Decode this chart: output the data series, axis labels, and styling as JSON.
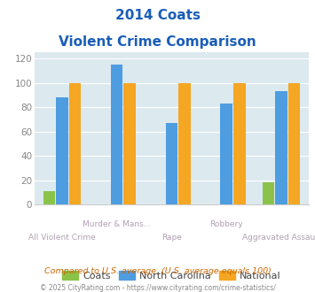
{
  "title_line1": "2014 Coats",
  "title_line2": "Violent Crime Comparison",
  "categories": [
    "All Violent Crime",
    "Murder & Mans...",
    "Rape",
    "Robbery",
    "Aggravated Assault"
  ],
  "coats": [
    11,
    0,
    0,
    0,
    18
  ],
  "north_carolina": [
    88,
    115,
    67,
    83,
    93
  ],
  "national": [
    100,
    100,
    100,
    100,
    100
  ],
  "color_coats": "#8bc34a",
  "color_nc": "#4d9de0",
  "color_national": "#f5a623",
  "ylim": [
    0,
    125
  ],
  "yticks": [
    0,
    20,
    40,
    60,
    80,
    100,
    120
  ],
  "bg_color": "#dce9ef",
  "footnote1": "Compared to U.S. average. (U.S. average equals 100)",
  "footnote2": "© 2025 CityRating.com - https://www.cityrating.com/crime-statistics/",
  "title_color": "#1a5eb8",
  "label_color_top": "#b0a0b0",
  "label_color_bottom": "#b0a0b0"
}
